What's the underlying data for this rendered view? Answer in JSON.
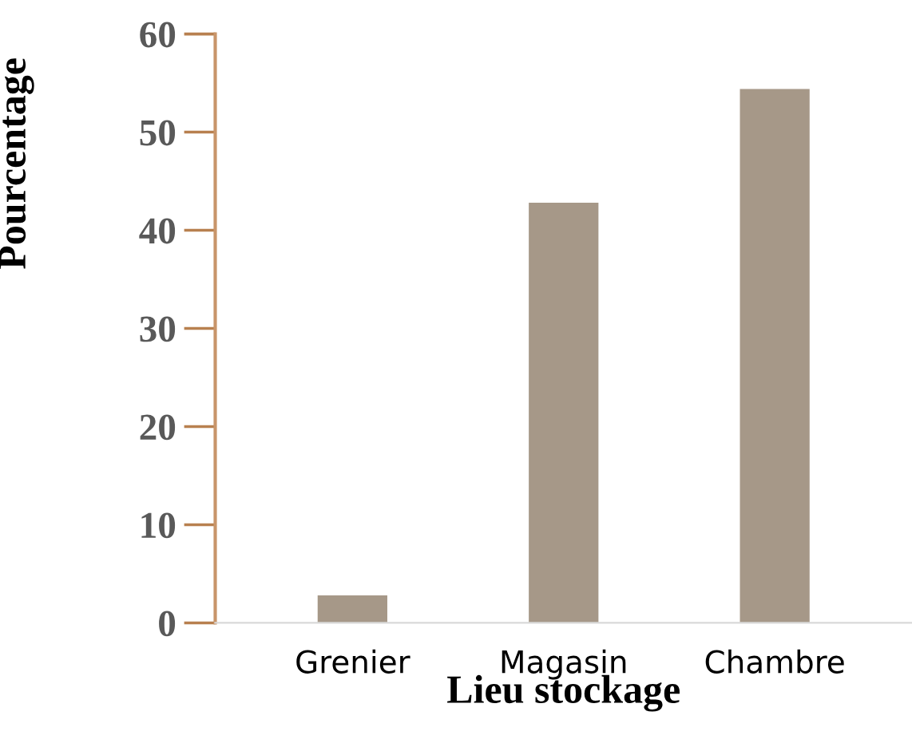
{
  "chart_data": {
    "type": "bar",
    "xlabel": "Lieu stockage",
    "ylabel": "Pourcentage",
    "categories": [
      "Grenier",
      "Magasin",
      "Chambre"
    ],
    "values": [
      2.8,
      42.8,
      54.4
    ],
    "color": "#a69888",
    "ylim": [
      0,
      60
    ],
    "yticks": [
      0,
      10,
      20,
      30,
      40,
      50,
      60
    ],
    "grid": false,
    "legend": false
  }
}
